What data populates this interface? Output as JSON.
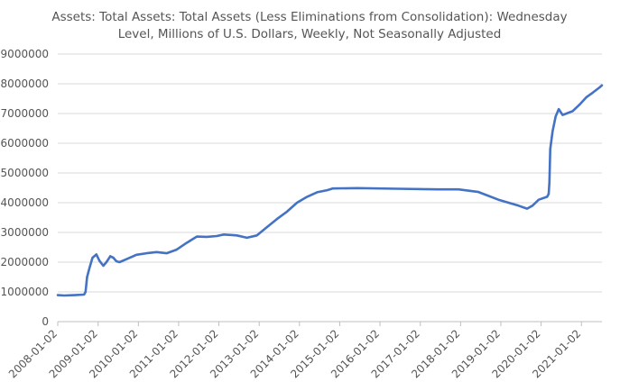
{
  "chart_data": {
    "type": "line",
    "title_lines": [
      "Assets: Total Assets: Total Assets (Less Eliminations from Consolidation): Wednesday",
      "Level, Millions of U.S. Dollars, Weekly, Not Seasonally Adjusted"
    ],
    "xlabel": "",
    "ylabel": "",
    "ylim": [
      0,
      9000000
    ],
    "yticks": [
      "0",
      "1000000",
      "2000000",
      "3000000",
      "4000000",
      "5000000",
      "6000000",
      "7000000",
      "8000000",
      "9000000"
    ],
    "xticks": [
      "2008-01-02",
      "2009-01-02",
      "2010-01-02",
      "2011-01-02",
      "2012-01-02",
      "2013-01-02",
      "2014-01-02",
      "2015-01-02",
      "2016-01-02",
      "2017-01-02",
      "2018-01-02",
      "2019-01-02",
      "2020-01-02",
      "2021-01-02"
    ],
    "grid": "horizontal",
    "legend": "none",
    "series": [
      {
        "color": "#4472c4",
        "x": [
          "2008-01-02",
          "2008-03-01",
          "2008-06-01",
          "2008-08-27",
          "2008-09-10",
          "2008-09-24",
          "2008-10-15",
          "2008-11-12",
          "2008-12-17",
          "2009-01-14",
          "2009-02-18",
          "2009-03-18",
          "2009-04-22",
          "2009-05-20",
          "2009-06-17",
          "2009-07-15",
          "2009-09-16",
          "2009-12-16",
          "2010-03-17",
          "2010-06-16",
          "2010-09-15",
          "2010-12-15",
          "2011-03-16",
          "2011-06-15",
          "2011-09-14",
          "2011-12-14",
          "2012-02-15",
          "2012-06-13",
          "2012-09-12",
          "2012-12-12",
          "2013-03-13",
          "2013-06-12",
          "2013-09-11",
          "2013-12-11",
          "2014-03-12",
          "2014-06-11",
          "2014-09-10",
          "2014-10-29",
          "2015-06-10",
          "2016-06-08",
          "2017-06-07",
          "2017-12-13",
          "2018-06-13",
          "2018-12-12",
          "2019-06-12",
          "2019-08-28",
          "2019-10-16",
          "2019-12-11",
          "2020-02-26",
          "2020-03-11",
          "2020-03-18",
          "2020-03-25",
          "2020-04-15",
          "2020-05-13",
          "2020-06-10",
          "2020-07-15",
          "2020-08-19",
          "2020-10-14",
          "2020-12-16",
          "2021-02-17",
          "2021-04-14",
          "2021-06-16",
          "2021-07-07"
        ],
        "y": [
          890000,
          880000,
          890000,
          910000,
          1000000,
          1500000,
          1800000,
          2150000,
          2260000,
          2050000,
          1880000,
          2000000,
          2200000,
          2150000,
          2030000,
          2000000,
          2100000,
          2250000,
          2300000,
          2340000,
          2300000,
          2420000,
          2650000,
          2860000,
          2850000,
          2880000,
          2930000,
          2900000,
          2820000,
          2900000,
          3180000,
          3450000,
          3700000,
          4000000,
          4200000,
          4350000,
          4420000,
          4480000,
          4490000,
          4470000,
          4450000,
          4450000,
          4360000,
          4100000,
          3900000,
          3800000,
          3900000,
          4100000,
          4200000,
          4300000,
          4700000,
          5800000,
          6400000,
          6900000,
          7150000,
          6950000,
          7000000,
          7080000,
          7300000,
          7550000,
          7700000,
          7880000,
          7950000
        ]
      }
    ]
  }
}
